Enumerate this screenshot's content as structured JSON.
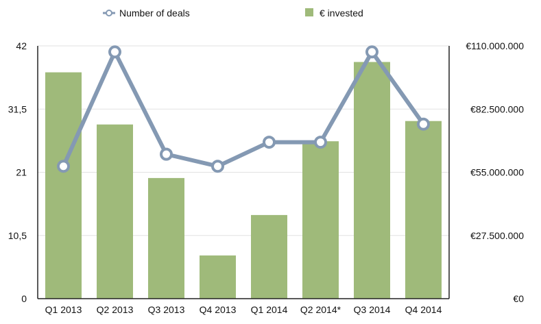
{
  "chart_data": {
    "type": "bar",
    "categories": [
      "Q1 2013",
      "Q2 2013",
      "Q3 2013",
      "Q4 2013",
      "Q1 2014",
      "Q2 2014*",
      "Q3 2014",
      "Q4 2014"
    ],
    "series": [
      {
        "name": "€ invested",
        "type": "bar",
        "axis": "right",
        "color": "#9fba7a",
        "values": [
          98500000,
          75800000,
          52500000,
          18800000,
          36400000,
          68500000,
          103000000,
          77300000
        ]
      },
      {
        "name": "Number of deals",
        "type": "line",
        "axis": "left",
        "color": "#8499b3",
        "values": [
          22,
          41,
          24,
          22,
          26,
          26,
          41,
          29
        ]
      }
    ],
    "left_axis": {
      "ticks": [
        0,
        10.5,
        21,
        31.5,
        42
      ],
      "tick_labels": [
        "0",
        "10,5",
        "21",
        "31,5",
        "42"
      ],
      "ylim": [
        0,
        42
      ]
    },
    "right_axis": {
      "ticks": [
        0,
        27500000,
        55000000,
        82500000,
        110000000
      ],
      "tick_labels": [
        "€0",
        "€27.500.000",
        "€55.000.000",
        "€82.500.000",
        "€110.000.000"
      ],
      "ylim": [
        0,
        110000000
      ]
    },
    "legend": {
      "placement": "top",
      "items": [
        {
          "label": "Number of deals",
          "marker": "line-circle"
        },
        {
          "label": "€ invested",
          "marker": "square"
        }
      ]
    },
    "grid": true
  }
}
